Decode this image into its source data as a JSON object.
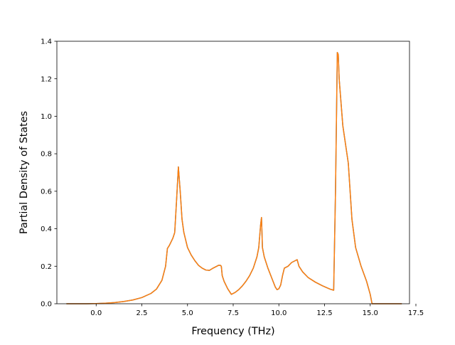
{
  "chart_data": {
    "type": "line",
    "title": "",
    "xlabel": "Frequency (THz)",
    "ylabel": "Partial Density of States",
    "xlim": [
      -2.15,
      17.15
    ],
    "ylim": [
      0.0,
      1.4
    ],
    "x_ticks": [
      0.0,
      2.5,
      5.0,
      7.5,
      10.0,
      12.5,
      15.0,
      17.5
    ],
    "x_tick_labels": [
      "0.0",
      "2.5",
      "5.0",
      "7.5",
      "10.0",
      "12.5",
      "15.0",
      "17.5"
    ],
    "y_ticks": [
      0.0,
      0.2,
      0.4,
      0.6,
      0.8,
      1.0,
      1.2,
      1.4
    ],
    "y_tick_labels": [
      "0.0",
      "0.2",
      "0.4",
      "0.6",
      "0.8",
      "1.0",
      "1.2",
      "1.4"
    ],
    "grid": false,
    "legend": "none",
    "series": [
      {
        "color": "#1f77b4",
        "x": [
          -1.6,
          -1.0,
          -0.5,
          0.0,
          0.5,
          1.0,
          1.5,
          2.0,
          2.5,
          3.0,
          3.3,
          3.6,
          3.8,
          3.9,
          4.0,
          4.1,
          4.2,
          4.3,
          4.4,
          4.5,
          4.6,
          4.7,
          4.8,
          5.0,
          5.2,
          5.4,
          5.6,
          5.8,
          6.0,
          6.2,
          6.4,
          6.6,
          6.7,
          6.8,
          6.85,
          6.9,
          7.0,
          7.2,
          7.4,
          7.6,
          7.8,
          8.0,
          8.2,
          8.4,
          8.6,
          8.8,
          8.9,
          9.0,
          9.05,
          9.1,
          9.2,
          9.4,
          9.6,
          9.8,
          9.9,
          10.0,
          10.1,
          10.2,
          10.3,
          10.5,
          10.7,
          10.9,
          11.0,
          11.1,
          11.3,
          11.6,
          12.0,
          12.4,
          12.8,
          13.0,
          13.1,
          13.2,
          13.25,
          13.3,
          13.5,
          13.8,
          14.0,
          14.2,
          14.5,
          14.8,
          15.0,
          15.1,
          15.3,
          15.8,
          16.7
        ],
        "y": [
          0.0,
          0.0,
          0.0,
          0.001,
          0.003,
          0.006,
          0.012,
          0.02,
          0.033,
          0.055,
          0.078,
          0.125,
          0.2,
          0.295,
          0.31,
          0.33,
          0.35,
          0.38,
          0.55,
          0.73,
          0.6,
          0.45,
          0.38,
          0.3,
          0.26,
          0.23,
          0.205,
          0.19,
          0.18,
          0.178,
          0.19,
          0.2,
          0.205,
          0.205,
          0.2,
          0.15,
          0.12,
          0.08,
          0.05,
          0.06,
          0.075,
          0.095,
          0.12,
          0.15,
          0.19,
          0.25,
          0.3,
          0.42,
          0.46,
          0.3,
          0.25,
          0.19,
          0.14,
          0.09,
          0.075,
          0.08,
          0.1,
          0.15,
          0.19,
          0.2,
          0.22,
          0.23,
          0.235,
          0.2,
          0.17,
          0.14,
          0.115,
          0.095,
          0.078,
          0.072,
          0.6,
          1.34,
          1.33,
          1.2,
          0.95,
          0.75,
          0.45,
          0.3,
          0.2,
          0.12,
          0.05,
          0.0,
          0.0,
          0.0,
          0.0
        ]
      },
      {
        "color": "#ff7f0e",
        "x": [
          -1.6,
          -1.0,
          -0.5,
          0.0,
          0.5,
          1.0,
          1.5,
          2.0,
          2.5,
          3.0,
          3.3,
          3.6,
          3.8,
          3.9,
          4.0,
          4.1,
          4.2,
          4.3,
          4.4,
          4.5,
          4.6,
          4.7,
          4.8,
          5.0,
          5.2,
          5.4,
          5.6,
          5.8,
          6.0,
          6.2,
          6.4,
          6.6,
          6.7,
          6.8,
          6.85,
          6.9,
          7.0,
          7.2,
          7.4,
          7.6,
          7.8,
          8.0,
          8.2,
          8.4,
          8.6,
          8.8,
          8.9,
          9.0,
          9.05,
          9.1,
          9.2,
          9.4,
          9.6,
          9.8,
          9.9,
          10.0,
          10.1,
          10.2,
          10.3,
          10.5,
          10.7,
          10.9,
          11.0,
          11.1,
          11.3,
          11.6,
          12.0,
          12.4,
          12.8,
          13.0,
          13.1,
          13.2,
          13.25,
          13.3,
          13.5,
          13.8,
          14.0,
          14.2,
          14.5,
          14.8,
          15.0,
          15.1,
          15.3,
          15.8,
          16.7
        ],
        "y": [
          0.0,
          0.0,
          0.0,
          0.001,
          0.003,
          0.006,
          0.012,
          0.02,
          0.033,
          0.055,
          0.078,
          0.125,
          0.2,
          0.295,
          0.31,
          0.33,
          0.35,
          0.38,
          0.55,
          0.73,
          0.6,
          0.45,
          0.38,
          0.3,
          0.26,
          0.23,
          0.205,
          0.19,
          0.18,
          0.178,
          0.19,
          0.2,
          0.205,
          0.205,
          0.2,
          0.15,
          0.12,
          0.08,
          0.05,
          0.06,
          0.075,
          0.095,
          0.12,
          0.15,
          0.19,
          0.25,
          0.3,
          0.42,
          0.46,
          0.3,
          0.25,
          0.19,
          0.14,
          0.09,
          0.075,
          0.08,
          0.1,
          0.15,
          0.19,
          0.2,
          0.22,
          0.23,
          0.235,
          0.2,
          0.17,
          0.14,
          0.115,
          0.095,
          0.078,
          0.072,
          0.6,
          1.34,
          1.33,
          1.2,
          0.95,
          0.75,
          0.45,
          0.3,
          0.2,
          0.12,
          0.05,
          0.0,
          0.0,
          0.0,
          0.0
        ]
      }
    ]
  }
}
